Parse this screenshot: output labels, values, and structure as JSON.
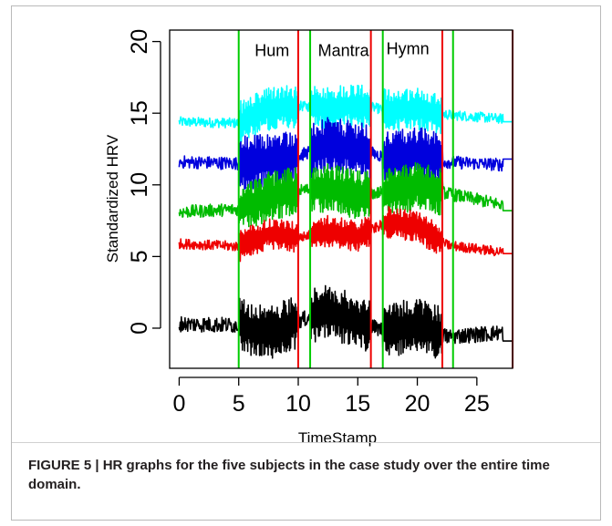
{
  "caption": "FIGURE 5 | HR graphs for the five subjects in the case study over the entire time domain.",
  "chart_data": {
    "type": "line",
    "title": "",
    "xlabel": "TimeStamp",
    "ylabel": "Standardized HRV",
    "xlim": [
      -0.8,
      28
    ],
    "ylim": [
      -2.8,
      20.8
    ],
    "xticks": [
      "0",
      "5",
      "10",
      "15",
      "20",
      "25"
    ],
    "yticks": [
      "0",
      "5",
      "10",
      "15",
      "20"
    ],
    "grid": false,
    "legend": "none",
    "annotations": [
      {
        "text": "Hum",
        "x": 7.8,
        "y": 19
      },
      {
        "text": "Mantra",
        "x": 13.8,
        "y": 19
      },
      {
        "text": "Hymn",
        "x": 19.2,
        "y": 19.1
      }
    ],
    "vlines": [
      {
        "x": 5,
        "color": "#00cc00"
      },
      {
        "x": 10,
        "color": "#ee0000"
      },
      {
        "x": 11,
        "color": "#00cc00"
      },
      {
        "x": 16.1,
        "color": "#ee0000"
      },
      {
        "x": 17.1,
        "color": "#00cc00"
      },
      {
        "x": 22.1,
        "color": "#ee0000"
      },
      {
        "x": 23,
        "color": "#00cc00"
      },
      {
        "x": 28,
        "color": "#cc0000"
      }
    ],
    "series": [
      {
        "color": "#00ffff",
        "base": 14.4,
        "rest_amp": 0.35,
        "active_amp": 1.5,
        "x": [
          0,
          5,
          7.5,
          10,
          12.5,
          15,
          17.5,
          20,
          22.5,
          27.2
        ],
        "y": [
          14.4,
          14.3,
          15.3,
          15.5,
          15.4,
          15.6,
          15.2,
          15.3,
          14.9,
          14.6
        ],
        "end_y": 14.4
      },
      {
        "color": "#0000dd",
        "base": 11.6,
        "rest_amp": 0.45,
        "active_amp": 1.9,
        "x": [
          0,
          5,
          7.5,
          10,
          12.5,
          15,
          17.5,
          20,
          22.5,
          27.2
        ],
        "y": [
          11.6,
          11.5,
          11.7,
          12.0,
          12.8,
          12.5,
          11.9,
          12.2,
          11.6,
          11.4
        ],
        "end_y": 11.8
      },
      {
        "color": "#00bb00",
        "base": 8.2,
        "rest_amp": 0.45,
        "active_amp": 1.7,
        "x": [
          0,
          5,
          7.5,
          10,
          12.5,
          15,
          17.5,
          20,
          22.5,
          27.2
        ],
        "y": [
          8.1,
          8.3,
          9.2,
          9.6,
          9.8,
          9.3,
          9.5,
          9.9,
          9.4,
          8.6
        ],
        "end_y": 8.2
      },
      {
        "color": "#ee0000",
        "base": 5.8,
        "rest_amp": 0.35,
        "active_amp": 1.1,
        "x": [
          0,
          5,
          7.5,
          10,
          12.5,
          15,
          17.5,
          20,
          22.5,
          27.2
        ],
        "y": [
          5.9,
          5.7,
          6.6,
          6.3,
          6.8,
          6.4,
          7.4,
          7.1,
          5.8,
          5.3
        ],
        "end_y": 5.2
      },
      {
        "color": "#000000",
        "base": 0.2,
        "rest_amp": 0.55,
        "active_amp": 1.9,
        "x": [
          0,
          5,
          7.5,
          10,
          12.5,
          15,
          17.5,
          20,
          22.5,
          27.2
        ],
        "y": [
          0.3,
          0.2,
          -0.4,
          0.5,
          1.2,
          0.4,
          -0.2,
          0.3,
          -0.6,
          -0.3
        ],
        "end_y": -0.9
      }
    ]
  }
}
